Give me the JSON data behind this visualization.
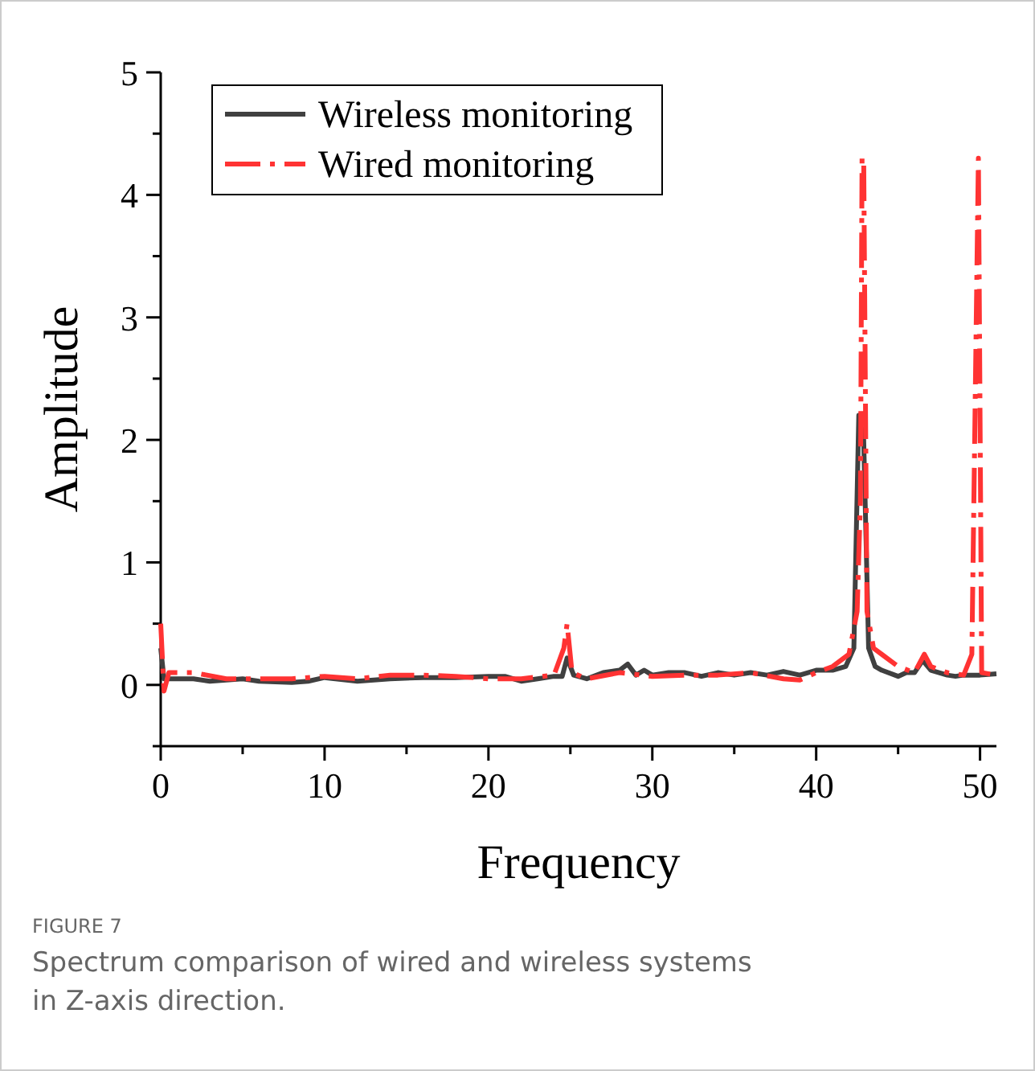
{
  "chart_data": {
    "type": "line",
    "xlabel": "Frequency",
    "ylabel": "Amplitude",
    "xlim": [
      0,
      51
    ],
    "xticks": [
      0,
      {
        "value": 5,
        "label": null
      },
      10,
      {
        "value": 15,
        "label": null
      },
      20,
      {
        "value": 25,
        "label": null
      },
      30,
      {
        "value": 35,
        "label": null
      },
      40,
      {
        "value": 45,
        "label": null
      },
      50
    ],
    "ylim": [
      -0.5,
      5
    ],
    "yticks": [
      {
        "value": -0.5,
        "label": null
      },
      0,
      {
        "value": 0.5,
        "label": null
      },
      1,
      {
        "value": 1.5,
        "label": null
      },
      2,
      {
        "value": 2.5,
        "label": null
      },
      3,
      {
        "value": 3.5,
        "label": null
      },
      4,
      {
        "value": 4.5,
        "label": null
      },
      5
    ],
    "legend": "top left",
    "grid": false,
    "annotations": [
      "FIGURE 7",
      "Spectrum comparison of wired and wireless systems in Z-axis direction."
    ],
    "series": [
      {
        "name": "Wireless monitoring",
        "color": "#404040",
        "line_style": "solid",
        "x": [
          0,
          0.2,
          0.5,
          2,
          3,
          5,
          6,
          8,
          9,
          10,
          12,
          14,
          16,
          18,
          20,
          21,
          22,
          23,
          24,
          24.5,
          24.8,
          25.2,
          26,
          27,
          28,
          28.5,
          29,
          29.5,
          30,
          31,
          32,
          33,
          34,
          35,
          36,
          37,
          38,
          39,
          40,
          41,
          41.8,
          42.3,
          42.6,
          42.9,
          43.2,
          43.6,
          44,
          45,
          45.5,
          46,
          46.5,
          47,
          47.5,
          48,
          48.5,
          49,
          50,
          51
        ],
        "values": [
          0.3,
          0.05,
          0.05,
          0.05,
          0.03,
          0.05,
          0.03,
          0.02,
          0.03,
          0.06,
          0.03,
          0.05,
          0.06,
          0.06,
          0.07,
          0.07,
          0.03,
          0.05,
          0.07,
          0.07,
          0.22,
          0.08,
          0.05,
          0.1,
          0.12,
          0.17,
          0.08,
          0.12,
          0.08,
          0.1,
          0.1,
          0.07,
          0.1,
          0.08,
          0.1,
          0.08,
          0.11,
          0.08,
          0.12,
          0.12,
          0.15,
          0.3,
          2.2,
          2.0,
          0.3,
          0.15,
          0.12,
          0.07,
          0.1,
          0.1,
          0.2,
          0.12,
          0.1,
          0.08,
          0.07,
          0.08,
          0.08,
          0.09
        ]
      },
      {
        "name": "Wired monitoring",
        "color": "#ff3333",
        "line_style": "dashdot",
        "x": [
          0,
          0.2,
          0.5,
          2,
          4,
          6,
          8,
          10,
          12,
          14,
          16,
          18,
          20,
          22,
          24,
          24.6,
          24.8,
          25.1,
          26,
          28,
          30,
          32,
          34,
          36,
          38,
          39,
          40,
          41,
          42,
          42.5,
          42.7,
          42.8,
          42.9,
          43.1,
          43.5,
          44,
          45,
          46,
          46.6,
          47,
          48,
          49,
          49.5,
          49.9,
          50.1,
          51
        ],
        "values": [
          0.5,
          -0.05,
          0.1,
          0.1,
          0.05,
          0.05,
          0.05,
          0.07,
          0.05,
          0.08,
          0.08,
          0.07,
          0.05,
          0.05,
          0.08,
          0.3,
          0.5,
          0.1,
          0.05,
          0.1,
          0.07,
          0.08,
          0.08,
          0.1,
          0.05,
          0.04,
          0.1,
          0.15,
          0.25,
          0.6,
          1.5,
          4.3,
          4.3,
          0.6,
          0.3,
          0.25,
          0.15,
          0.1,
          0.25,
          0.15,
          0.1,
          0.08,
          0.25,
          4.3,
          0.1,
          0.08
        ]
      }
    ]
  }
}
